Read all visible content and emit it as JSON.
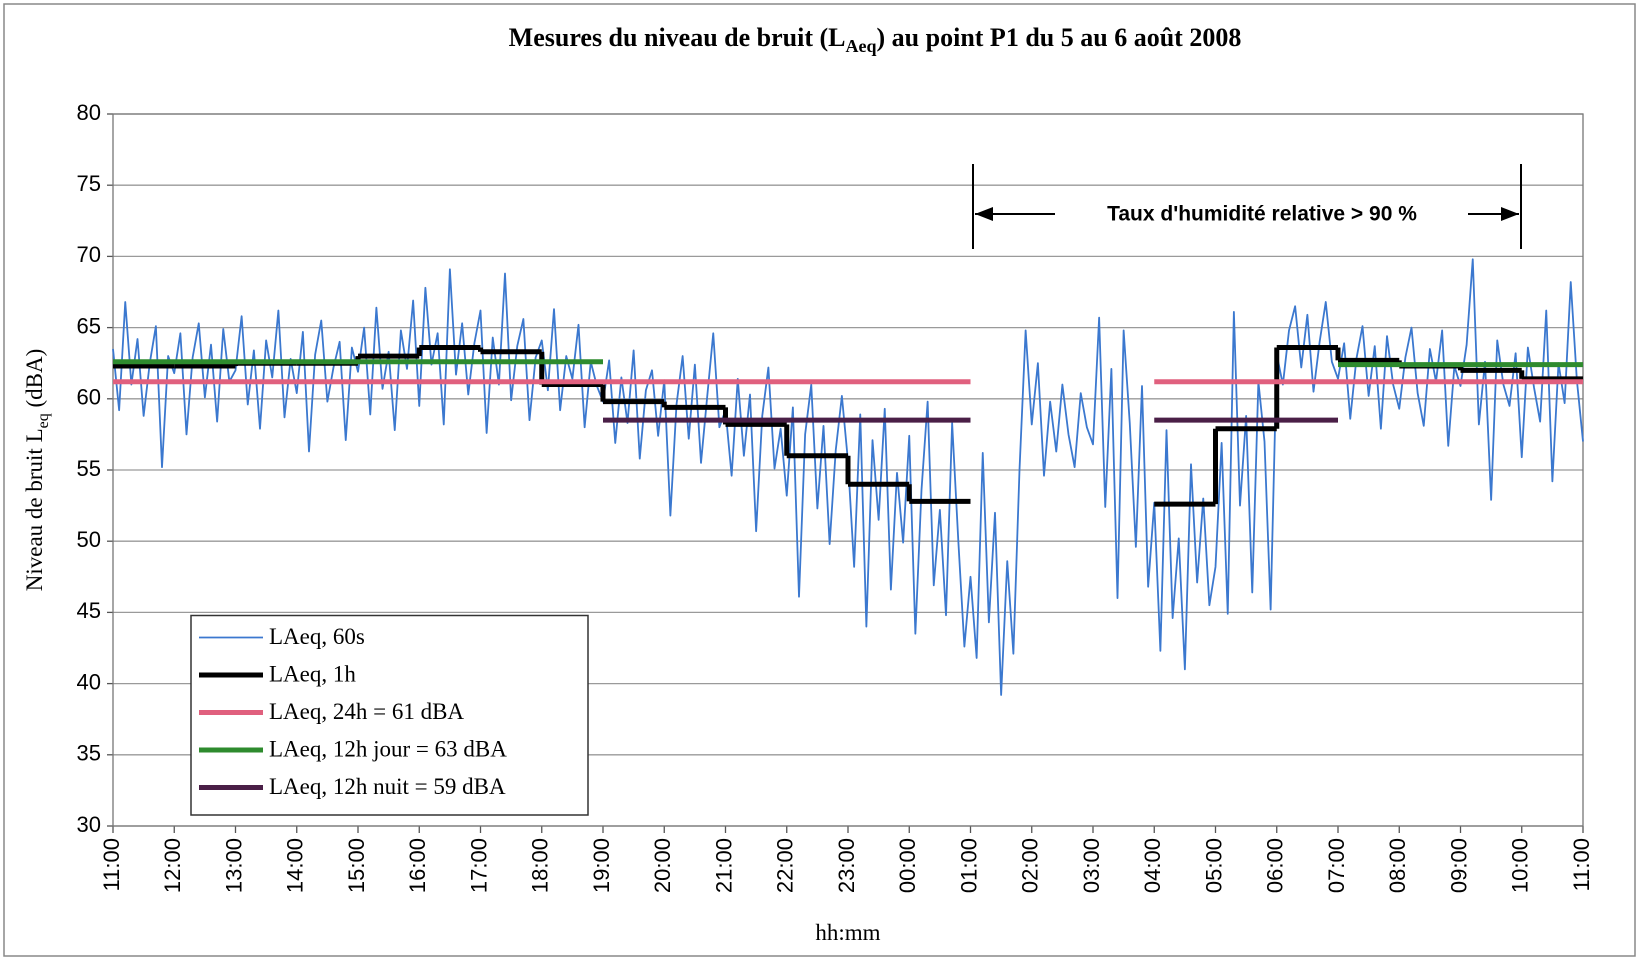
{
  "chart_data": {
    "type": "line",
    "title": [
      "Mesures du niveau de bruit (L",
      "Aeq",
      ") au point P1 du 5 au 6 août 2008"
    ],
    "ylabel": [
      "Niveau de bruit L",
      "eq",
      " (dBA)"
    ],
    "xlabel": "hh:mm",
    "annotation": "Taux d'humidité relative > 90 %",
    "xlim": [
      0,
      1440
    ],
    "xticks": [
      {
        "value": 0,
        "label": "11:00"
      },
      {
        "value": 60,
        "label": "12:00"
      },
      {
        "value": 120,
        "label": "13:00"
      },
      {
        "value": 180,
        "label": "14:00"
      },
      {
        "value": 240,
        "label": "15:00"
      },
      {
        "value": 300,
        "label": "16:00"
      },
      {
        "value": 360,
        "label": "17:00"
      },
      {
        "value": 420,
        "label": "18:00"
      },
      {
        "value": 480,
        "label": "19:00"
      },
      {
        "value": 540,
        "label": "20:00"
      },
      {
        "value": 600,
        "label": "21:00"
      },
      {
        "value": 660,
        "label": "22:00"
      },
      {
        "value": 720,
        "label": "23:00"
      },
      {
        "value": 780,
        "label": "00:00"
      },
      {
        "value": 840,
        "label": "01:00"
      },
      {
        "value": 900,
        "label": "02:00"
      },
      {
        "value": 960,
        "label": "03:00"
      },
      {
        "value": 1020,
        "label": "04:00"
      },
      {
        "value": 1080,
        "label": "05:00"
      },
      {
        "value": 1140,
        "label": "06:00"
      },
      {
        "value": 1200,
        "label": "07:00"
      },
      {
        "value": 1260,
        "label": "08:00"
      },
      {
        "value": 1320,
        "label": "09:00"
      },
      {
        "value": 1380,
        "label": "10:00"
      },
      {
        "value": 1440,
        "label": "11:00"
      }
    ],
    "ylim": [
      30,
      80
    ],
    "yticks": [
      30,
      35,
      40,
      45,
      50,
      55,
      60,
      65,
      70,
      75,
      80
    ],
    "grid": true,
    "legend": "lower left",
    "series": [
      {
        "name": "LAeq, 60s",
        "color": "#3b78cf",
        "x": [
          0,
          6,
          12,
          18,
          24,
          30,
          36,
          42,
          48,
          54,
          60,
          66,
          72,
          78,
          84,
          90,
          96,
          102,
          108,
          114,
          120,
          126,
          132,
          138,
          144,
          150,
          156,
          162,
          168,
          174,
          180,
          186,
          192,
          198,
          204,
          210,
          216,
          222,
          228,
          234,
          240,
          246,
          252,
          258,
          264,
          270,
          276,
          282,
          288,
          294,
          300,
          306,
          312,
          318,
          324,
          330,
          336,
          342,
          348,
          354,
          360,
          366,
          372,
          378,
          384,
          390,
          396,
          402,
          408,
          414,
          420,
          426,
          432,
          438,
          444,
          450,
          456,
          462,
          468,
          474,
          480,
          486,
          492,
          498,
          504,
          510,
          516,
          522,
          528,
          534,
          540,
          546,
          552,
          558,
          564,
          570,
          576,
          582,
          588,
          594,
          600,
          606,
          612,
          618,
          624,
          630,
          636,
          642,
          648,
          654,
          660,
          666,
          672,
          678,
          684,
          690,
          696,
          702,
          708,
          714,
          720,
          726,
          732,
          738,
          744,
          750,
          756,
          762,
          768,
          774,
          780,
          786,
          792,
          798,
          804,
          810,
          816,
          822,
          828,
          834,
          840,
          846,
          852,
          858,
          864,
          870,
          876,
          882,
          888,
          894,
          900,
          906,
          912,
          918,
          924,
          930,
          936,
          942,
          948,
          954,
          960,
          966,
          972,
          978,
          984,
          990,
          996,
          1002,
          1008,
          1014,
          1020,
          1026,
          1032,
          1038,
          1044,
          1050,
          1056,
          1062,
          1068,
          1074,
          1080,
          1086,
          1092,
          1098,
          1104,
          1110,
          1116,
          1122,
          1128,
          1134,
          1140,
          1146,
          1152,
          1158,
          1164,
          1170,
          1176,
          1182,
          1188,
          1194,
          1200,
          1206,
          1212,
          1218,
          1224,
          1230,
          1236,
          1242,
          1248,
          1254,
          1260,
          1266,
          1272,
          1278,
          1284,
          1290,
          1296,
          1302,
          1308,
          1314,
          1320,
          1326,
          1332,
          1338,
          1344,
          1350,
          1356,
          1362,
          1368,
          1374,
          1380,
          1386,
          1392,
          1398,
          1404,
          1410,
          1416,
          1422,
          1428,
          1434,
          1440
        ],
        "values": [
          63.5,
          59.2,
          66.8,
          61.0,
          64.2,
          58.8,
          62.5,
          65.1,
          55.2,
          63.0,
          61.8,
          64.6,
          57.5,
          62.9,
          65.3,
          60.1,
          63.8,
          58.4,
          64.9,
          61.2,
          62.0,
          65.8,
          59.6,
          63.4,
          57.9,
          64.1,
          61.5,
          66.2,
          58.7,
          62.8,
          60.4,
          64.7,
          56.3,
          63.1,
          65.5,
          59.8,
          62.2,
          64.0,
          57.1,
          63.6,
          61.9,
          65.0,
          58.9,
          66.4,
          60.7,
          63.3,
          57.8,
          64.8,
          62.1,
          66.9,
          59.5,
          67.8,
          62.4,
          64.6,
          58.2,
          69.1,
          61.7,
          65.3,
          60.3,
          63.9,
          66.2,
          57.6,
          64.3,
          61.0,
          68.8,
          59.9,
          63.7,
          65.6,
          58.5,
          62.9,
          64.1,
          60.6,
          66.3,
          59.2,
          63.0,
          61.4,
          65.2,
          58.0,
          62.6,
          60.9,
          59.8,
          62.7,
          56.9,
          61.5,
          58.3,
          63.4,
          55.8,
          60.6,
          62.0,
          57.4,
          61.3,
          51.8,
          59.6,
          63.0,
          57.2,
          62.4,
          55.5,
          60.1,
          64.6,
          58.0,
          59.2,
          54.6,
          61.4,
          56.0,
          60.3,
          50.7,
          58.8,
          62.2,
          55.1,
          57.9,
          53.2,
          59.4,
          46.1,
          57.5,
          61.0,
          52.3,
          58.1,
          49.8,
          56.4,
          60.2,
          55.6,
          48.2,
          58.9,
          44.0,
          57.1,
          51.5,
          59.3,
          46.6,
          54.8,
          49.9,
          57.4,
          43.5,
          53.6,
          59.8,
          46.9,
          52.2,
          44.8,
          58.3,
          50.1,
          42.6,
          47.5,
          41.8,
          56.2,
          44.3,
          52.0,
          39.2,
          48.6,
          42.1,
          55.0,
          64.8,
          58.2,
          62.5,
          54.6,
          59.8,
          56.3,
          61.0,
          57.5,
          55.2,
          60.4,
          58.0,
          56.8,
          65.7,
          52.4,
          62.1,
          46.0,
          64.8,
          58.3,
          49.6,
          60.9,
          46.8,
          52.7,
          42.3,
          57.8,
          44.6,
          50.2,
          41.0,
          55.4,
          47.1,
          53.0,
          45.5,
          48.2,
          56.9,
          44.9,
          66.1,
          52.5,
          58.8,
          46.4,
          61.2,
          57.0,
          45.2,
          63.1,
          61.0,
          64.8,
          66.5,
          62.2,
          65.9,
          60.5,
          64.0,
          66.8,
          62.6,
          61.4,
          63.9,
          58.6,
          62.8,
          65.1,
          60.2,
          63.7,
          57.9,
          64.4,
          61.0,
          59.3,
          62.9,
          65.0,
          60.4,
          58.1,
          63.5,
          61.2,
          64.8,
          56.7,
          62.3,
          60.9,
          63.8,
          69.8,
          58.2,
          62.6,
          52.9,
          64.1,
          61.0,
          59.5,
          63.2,
          55.9,
          63.6,
          60.8,
          58.4,
          66.2,
          54.2,
          62.5,
          59.7,
          68.2,
          61.3,
          57.0
        ]
      },
      {
        "name": "LAeq, 1h",
        "color": "#000000",
        "step": true,
        "x": [
          0,
          60,
          120,
          180,
          240,
          300,
          360,
          420,
          480,
          540,
          600,
          660,
          720,
          780,
          840,
          900,
          960,
          1020,
          1080,
          1140,
          1200,
          1260,
          1320,
          1380
        ],
        "values": [
          62.3,
          62.3,
          62.5,
          62.5,
          63.0,
          63.6,
          63.3,
          61.0,
          59.8,
          59.4,
          58.2,
          56.0,
          54.0,
          52.8,
          null,
          null,
          null,
          52.6,
          57.9,
          63.6,
          62.7,
          62.3,
          62.0,
          61.4
        ]
      },
      {
        "name": "LAeq, 24h = 61 dBA",
        "color": "#e0607e",
        "x": [
          0,
          840,
          900,
          1020,
          1440
        ],
        "values": [
          61.2,
          61.2,
          null,
          61.2,
          61.2
        ]
      },
      {
        "name": "LAeq, 12h jour = 63 dBA",
        "color": "#2e8b2e",
        "x": [
          0,
          480,
          900,
          1200,
          1440
        ],
        "values": [
          62.6,
          62.6,
          null,
          62.4,
          62.4
        ]
      },
      {
        "name": "LAeq, 12h nuit = 59 dBA",
        "color": "#4a1f47",
        "x": [
          480,
          840,
          900,
          1020,
          1200
        ],
        "values": [
          58.5,
          58.5,
          null,
          58.5,
          58.5
        ]
      }
    ]
  }
}
